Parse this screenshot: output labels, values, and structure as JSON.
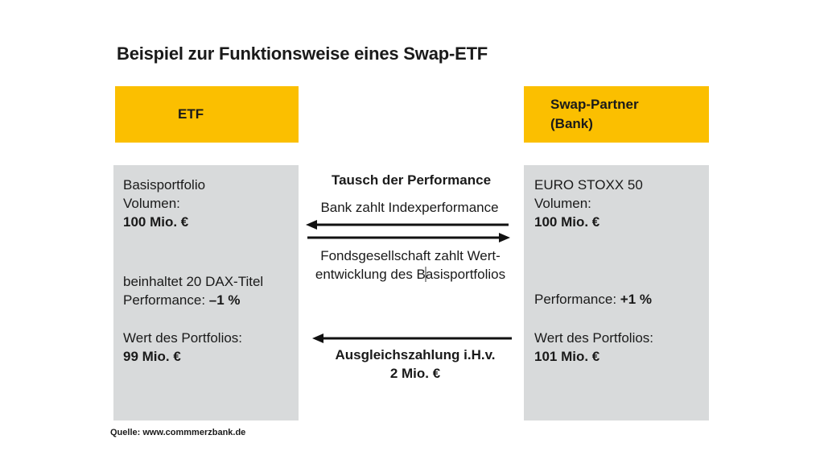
{
  "title": "Beispiel zur Funktionsweise eines Swap-ETF",
  "etf": {
    "header": "ETF",
    "line1": "Basisportfolio",
    "line2": "Volumen:",
    "volume": "100 Mio. €",
    "holdings": "beinhaltet 20 DAX-Titel",
    "performance_label": "Performance: ",
    "performance_value": "–1 %",
    "value_label": "Wert des Portfolios:",
    "value": "99 Mio. €"
  },
  "partner": {
    "header": "Swap-Partner\n(Bank)",
    "line1": "EURO STOXX 50",
    "line2": "Volumen:",
    "volume": "100 Mio. €",
    "performance_label": "Performance: ",
    "performance_value": "+1 %",
    "value_label": "Wert des Portfolios:",
    "value": "101 Mio. €"
  },
  "middle": {
    "heading": "Tausch der Performance",
    "bank_pays": "Bank zahlt Indexperformance",
    "fund_pays_line1": "Fondsgesellschaft zahlt Wert-",
    "fund_pays_line2": "entwicklung des Basisportfolios",
    "compensation_line1": "Ausgleichszahlung i.H.v.",
    "compensation_line2": "2 Mio. €"
  },
  "source": "Quelle: www.commmerzbank.de"
}
